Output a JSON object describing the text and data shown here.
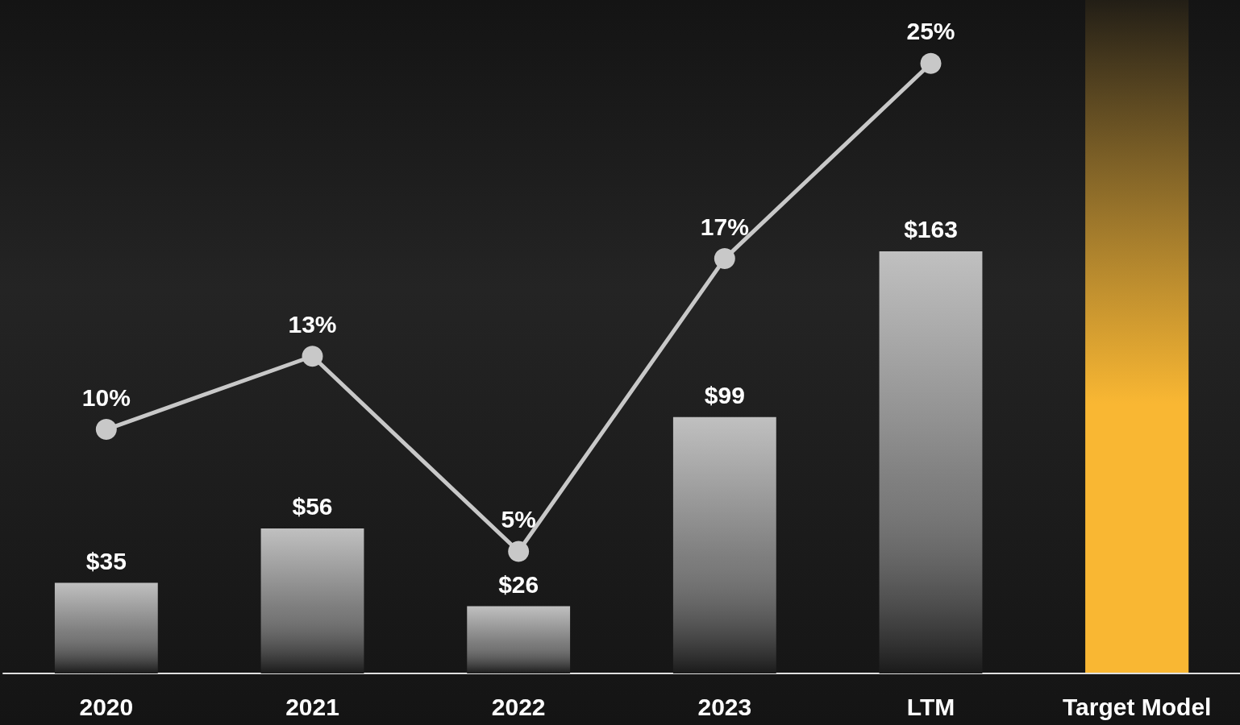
{
  "chart_data": {
    "type": "bar",
    "categories": [
      "2020",
      "2021",
      "2022",
      "2023",
      "LTM",
      "Target Model"
    ],
    "series": [
      {
        "color": "#c0c0c0",
        "values": [
          35,
          56,
          26,
          99,
          163,
          null
        ],
        "value_labels": [
          "$35",
          "$56",
          "$26",
          "$99",
          "$163",
          null
        ]
      },
      {
        "type": "line",
        "axis": "y2",
        "color": "#c8c8c8",
        "values": [
          10,
          13,
          5,
          17,
          25,
          null
        ],
        "value_labels": [
          "10%",
          "13%",
          "5%",
          "17%",
          "25%",
          null
        ]
      }
    ],
    "ylim": [
      0,
      260
    ],
    "y2lim": [
      0,
      27.6
    ],
    "bands": [
      {
        "axis": "x",
        "from": "Target Model",
        "to": "Target Model",
        "color": "#f9b733"
      }
    ],
    "marker": "circle",
    "line_style": "solid"
  }
}
